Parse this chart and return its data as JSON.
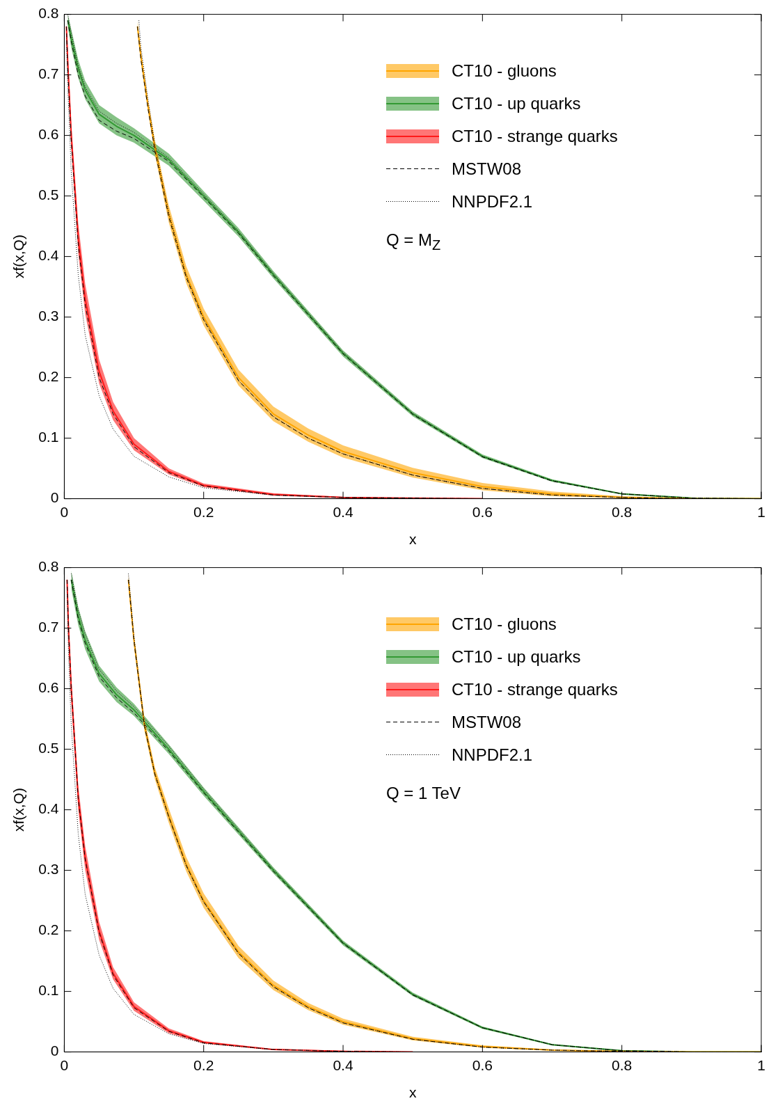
{
  "chart_data": [
    {
      "type": "line",
      "xlabel": "x",
      "ylabel": "xf(x,Q)",
      "xlim": [
        0,
        1
      ],
      "ylim": [
        0,
        0.8
      ],
      "xticks": [
        0,
        0.2,
        0.4,
        0.6,
        0.8,
        1
      ],
      "yticks": [
        0,
        0.1,
        0.2,
        0.3,
        0.4,
        0.5,
        0.6,
        0.7,
        0.8
      ],
      "grid": false,
      "legend": "top right",
      "annotations": [
        "Q = M$_{Z}$"
      ],
      "series": [
        {
          "name": "CT10 - gluons",
          "color": "#ffa500",
          "x": [
            0.105,
            0.11,
            0.12,
            0.13,
            0.15,
            0.175,
            0.2,
            0.25,
            0.3,
            0.35,
            0.4,
            0.5,
            0.6,
            0.7,
            0.8,
            0.9,
            1
          ],
          "values": [
            0.78,
            0.73,
            0.65,
            0.58,
            0.47,
            0.37,
            0.3,
            0.2,
            0.14,
            0.105,
            0.078,
            0.043,
            0.02,
            0.008,
            0.002,
            0,
            0
          ],
          "lower": [
            0.77,
            0.72,
            0.64,
            0.568,
            0.456,
            0.356,
            0.286,
            0.187,
            0.128,
            0.094,
            0.068,
            0.035,
            0.014,
            0.004,
            0.001,
            0,
            0
          ],
          "upper": [
            0.79,
            0.74,
            0.66,
            0.592,
            0.484,
            0.384,
            0.314,
            0.213,
            0.152,
            0.116,
            0.088,
            0.051,
            0.026,
            0.012,
            0.004,
            0.001,
            0
          ]
        },
        {
          "name": "CT10 - up quarks",
          "color": "#339933",
          "x": [
            0.005,
            0.01,
            0.02,
            0.03,
            0.05,
            0.075,
            0.1,
            0.15,
            0.2,
            0.25,
            0.3,
            0.4,
            0.5,
            0.6,
            0.7,
            0.8,
            0.9,
            1
          ],
          "values": [
            0.79,
            0.76,
            0.71,
            0.675,
            0.635,
            0.615,
            0.6,
            0.56,
            0.5,
            0.44,
            0.37,
            0.24,
            0.14,
            0.07,
            0.03,
            0.008,
            0.001,
            0
          ],
          "lower": [
            0.78,
            0.745,
            0.695,
            0.66,
            0.62,
            0.6,
            0.588,
            0.55,
            0.492,
            0.433,
            0.364,
            0.235,
            0.136,
            0.067,
            0.028,
            0.007,
            0,
            0
          ],
          "upper": [
            0.8,
            0.775,
            0.725,
            0.69,
            0.65,
            0.63,
            0.612,
            0.57,
            0.508,
            0.447,
            0.376,
            0.245,
            0.144,
            0.073,
            0.032,
            0.009,
            0.002,
            0
          ]
        },
        {
          "name": "CT10 - strange quarks",
          "color": "#ff1a1a",
          "x": [
            0.003,
            0.005,
            0.01,
            0.02,
            0.03,
            0.05,
            0.07,
            0.1,
            0.15,
            0.2,
            0.3,
            0.4,
            0.5,
            0.6
          ],
          "values": [
            0.78,
            0.72,
            0.6,
            0.43,
            0.33,
            0.21,
            0.145,
            0.09,
            0.045,
            0.022,
            0.007,
            0.002,
            0.001,
            0
          ],
          "lower": [
            0.77,
            0.7,
            0.58,
            0.405,
            0.305,
            0.19,
            0.13,
            0.08,
            0.04,
            0.019,
            0.005,
            0.001,
            0,
            0
          ],
          "upper": [
            0.79,
            0.74,
            0.62,
            0.455,
            0.355,
            0.23,
            0.16,
            0.1,
            0.05,
            0.025,
            0.009,
            0.003,
            0.001,
            0
          ]
        },
        {
          "name": "MSTW08",
          "color": "#000000",
          "line_style": "dashed",
          "x": [
            0.105,
            0.11,
            0.12,
            0.13,
            0.15,
            0.175,
            0.2,
            0.25,
            0.3,
            0.35,
            0.4,
            0.5,
            0.6,
            0.7,
            0.8,
            0.9,
            1
          ],
          "values": [
            0.78,
            0.725,
            0.645,
            0.575,
            0.465,
            0.365,
            0.295,
            0.195,
            0.135,
            0.1,
            0.074,
            0.039,
            0.017,
            0.006,
            0.002,
            0,
            0
          ]
        },
        {
          "color": "#000000",
          "line_style": "dashed",
          "x": [
            0.005,
            0.01,
            0.02,
            0.03,
            0.05,
            0.075,
            0.1,
            0.15,
            0.2,
            0.25,
            0.3,
            0.4,
            0.5,
            0.6,
            0.7,
            0.8,
            0.9,
            1
          ],
          "values": [
            0.79,
            0.755,
            0.7,
            0.665,
            0.625,
            0.607,
            0.595,
            0.557,
            0.498,
            0.438,
            0.368,
            0.239,
            0.139,
            0.069,
            0.029,
            0.008,
            0.001,
            0
          ]
        },
        {
          "color": "#000000",
          "line_style": "dashed",
          "x": [
            0.003,
            0.005,
            0.01,
            0.02,
            0.03,
            0.05,
            0.07,
            0.1,
            0.15,
            0.2,
            0.3,
            0.4,
            0.5,
            0.6
          ],
          "values": [
            0.78,
            0.71,
            0.59,
            0.42,
            0.32,
            0.2,
            0.14,
            0.086,
            0.043,
            0.021,
            0.006,
            0.002,
            0.001,
            0
          ]
        },
        {
          "name": "NNPDF2.1",
          "color": "#000000",
          "line_style": "dotted",
          "x": [
            0.107,
            0.11,
            0.12,
            0.13,
            0.15,
            0.175,
            0.2,
            0.25,
            0.3,
            0.35,
            0.4,
            0.5,
            0.6,
            0.7,
            0.8,
            0.9,
            1
          ],
          "values": [
            0.79,
            0.745,
            0.66,
            0.585,
            0.472,
            0.368,
            0.297,
            0.195,
            0.136,
            0.1,
            0.074,
            0.039,
            0.017,
            0.006,
            0.002,
            0,
            0
          ]
        },
        {
          "color": "#000000",
          "line_style": "dotted",
          "x": [
            0.005,
            0.01,
            0.02,
            0.03,
            0.05,
            0.075,
            0.1,
            0.15,
            0.2,
            0.25,
            0.3,
            0.4,
            0.5,
            0.6,
            0.7,
            0.8,
            0.9,
            1
          ],
          "values": [
            0.8,
            0.77,
            0.715,
            0.68,
            0.64,
            0.62,
            0.605,
            0.563,
            0.503,
            0.442,
            0.372,
            0.242,
            0.141,
            0.07,
            0.03,
            0.008,
            0.001,
            0
          ]
        },
        {
          "color": "#000000",
          "line_style": "dotted",
          "x": [
            0.003,
            0.005,
            0.01,
            0.02,
            0.03,
            0.05,
            0.07,
            0.1,
            0.15,
            0.2,
            0.3,
            0.4,
            0.5,
            0.6
          ],
          "values": [
            0.76,
            0.68,
            0.54,
            0.37,
            0.27,
            0.17,
            0.115,
            0.07,
            0.036,
            0.018,
            0.006,
            0.002,
            0.001,
            0
          ]
        }
      ]
    },
    {
      "type": "line",
      "xlabel": "x",
      "ylabel": "xf(x,Q)",
      "xlim": [
        0,
        1
      ],
      "ylim": [
        0,
        0.8
      ],
      "xticks": [
        0,
        0.2,
        0.4,
        0.6,
        0.8,
        1
      ],
      "yticks": [
        0,
        0.1,
        0.2,
        0.3,
        0.4,
        0.5,
        0.6,
        0.7,
        0.8
      ],
      "grid": false,
      "legend": "top right",
      "annotations": [
        "Q = 1 TeV"
      ],
      "series": [
        {
          "name": "CT10 - gluons",
          "color": "#ffa500",
          "x": [
            0.092,
            0.1,
            0.115,
            0.13,
            0.15,
            0.175,
            0.2,
            0.25,
            0.3,
            0.35,
            0.4,
            0.5,
            0.6,
            0.7,
            0.8,
            0.9,
            1
          ],
          "values": [
            0.78,
            0.68,
            0.54,
            0.46,
            0.39,
            0.31,
            0.25,
            0.165,
            0.11,
            0.075,
            0.05,
            0.022,
            0.009,
            0.003,
            0.001,
            0,
            0
          ],
          "lower": [
            0.77,
            0.67,
            0.53,
            0.45,
            0.378,
            0.298,
            0.238,
            0.155,
            0.102,
            0.069,
            0.045,
            0.019,
            0.007,
            0.002,
            0,
            0,
            0
          ],
          "upper": [
            0.79,
            0.69,
            0.55,
            0.47,
            0.402,
            0.322,
            0.262,
            0.175,
            0.118,
            0.081,
            0.055,
            0.025,
            0.011,
            0.004,
            0.001,
            0,
            0
          ]
        },
        {
          "name": "CT10 - up quarks",
          "color": "#339933",
          "x": [
            0.01,
            0.02,
            0.03,
            0.05,
            0.075,
            0.1,
            0.15,
            0.2,
            0.25,
            0.3,
            0.4,
            0.5,
            0.6,
            0.7,
            0.8,
            0.9,
            1
          ],
          "values": [
            0.78,
            0.72,
            0.68,
            0.625,
            0.59,
            0.565,
            0.5,
            0.43,
            0.365,
            0.3,
            0.18,
            0.095,
            0.04,
            0.012,
            0.002,
            0,
            0
          ],
          "lower": [
            0.765,
            0.705,
            0.665,
            0.612,
            0.578,
            0.555,
            0.492,
            0.423,
            0.359,
            0.295,
            0.176,
            0.092,
            0.038,
            0.011,
            0.001,
            0,
            0
          ],
          "upper": [
            0.795,
            0.735,
            0.695,
            0.638,
            0.602,
            0.575,
            0.508,
            0.437,
            0.371,
            0.305,
            0.184,
            0.098,
            0.042,
            0.013,
            0.003,
            0,
            0
          ]
        },
        {
          "name": "CT10 - strange quarks",
          "color": "#ff1a1a",
          "x": [
            0.004,
            0.006,
            0.01,
            0.02,
            0.03,
            0.05,
            0.07,
            0.1,
            0.15,
            0.2,
            0.3,
            0.4,
            0.5
          ],
          "values": [
            0.78,
            0.7,
            0.6,
            0.42,
            0.32,
            0.2,
            0.13,
            0.075,
            0.035,
            0.016,
            0.004,
            0.001,
            0
          ],
          "lower": [
            0.77,
            0.68,
            0.58,
            0.4,
            0.3,
            0.185,
            0.12,
            0.068,
            0.031,
            0.014,
            0.003,
            0,
            0
          ],
          "upper": [
            0.79,
            0.72,
            0.62,
            0.44,
            0.34,
            0.215,
            0.14,
            0.082,
            0.039,
            0.018,
            0.005,
            0.002,
            0
          ]
        },
        {
          "name": "MSTW08",
          "color": "#000000",
          "line_style": "dashed",
          "x": [
            0.092,
            0.1,
            0.115,
            0.13,
            0.15,
            0.175,
            0.2,
            0.25,
            0.3,
            0.35,
            0.4,
            0.5,
            0.6,
            0.7,
            0.8,
            0.9,
            1
          ],
          "values": [
            0.78,
            0.678,
            0.538,
            0.458,
            0.388,
            0.308,
            0.248,
            0.163,
            0.108,
            0.073,
            0.048,
            0.021,
            0.008,
            0.003,
            0.001,
            0,
            0
          ]
        },
        {
          "color": "#000000",
          "line_style": "dashed",
          "x": [
            0.01,
            0.02,
            0.03,
            0.05,
            0.075,
            0.1,
            0.15,
            0.2,
            0.25,
            0.3,
            0.4,
            0.5,
            0.6,
            0.7,
            0.8,
            0.9,
            1
          ],
          "values": [
            0.78,
            0.715,
            0.675,
            0.62,
            0.585,
            0.56,
            0.497,
            0.428,
            0.363,
            0.298,
            0.179,
            0.094,
            0.04,
            0.012,
            0.002,
            0,
            0
          ]
        },
        {
          "color": "#000000",
          "line_style": "dashed",
          "x": [
            0.004,
            0.006,
            0.01,
            0.02,
            0.03,
            0.05,
            0.07,
            0.1,
            0.15,
            0.2,
            0.3,
            0.4,
            0.5
          ],
          "values": [
            0.78,
            0.7,
            0.6,
            0.418,
            0.318,
            0.197,
            0.127,
            0.073,
            0.034,
            0.015,
            0.004,
            0.001,
            0
          ]
        },
        {
          "name": "NNPDF2.1",
          "color": "#000000",
          "line_style": "dotted",
          "x": [
            0.092,
            0.1,
            0.115,
            0.13,
            0.15,
            0.175,
            0.2,
            0.25,
            0.3,
            0.35,
            0.4,
            0.5,
            0.6,
            0.7,
            0.8,
            0.9,
            1
          ],
          "values": [
            0.79,
            0.685,
            0.542,
            0.46,
            0.388,
            0.307,
            0.247,
            0.162,
            0.107,
            0.073,
            0.048,
            0.021,
            0.008,
            0.003,
            0.001,
            0,
            0
          ]
        },
        {
          "color": "#000000",
          "line_style": "dotted",
          "x": [
            0.01,
            0.02,
            0.03,
            0.05,
            0.075,
            0.1,
            0.15,
            0.2,
            0.25,
            0.3,
            0.4,
            0.5,
            0.6,
            0.7,
            0.8,
            0.9,
            1
          ],
          "values": [
            0.79,
            0.73,
            0.69,
            0.632,
            0.596,
            0.57,
            0.505,
            0.434,
            0.368,
            0.302,
            0.181,
            0.095,
            0.04,
            0.012,
            0.002,
            0,
            0
          ]
        },
        {
          "color": "#000000",
          "line_style": "dotted",
          "x": [
            0.004,
            0.006,
            0.01,
            0.02,
            0.03,
            0.05,
            0.07,
            0.1,
            0.15,
            0.2,
            0.3,
            0.4,
            0.5
          ],
          "values": [
            0.76,
            0.66,
            0.54,
            0.36,
            0.26,
            0.16,
            0.105,
            0.062,
            0.03,
            0.014,
            0.004,
            0.001,
            0
          ]
        }
      ]
    }
  ]
}
